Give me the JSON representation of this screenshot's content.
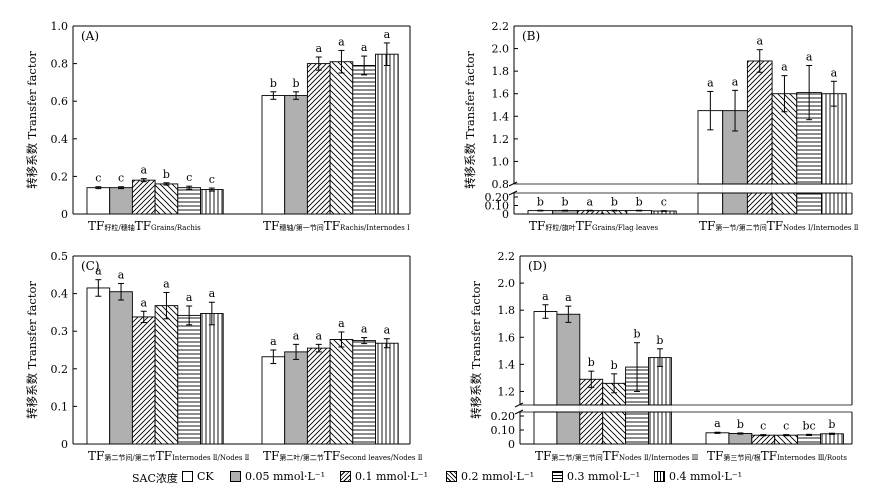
{
  "colors": {
    "CK": "#ffffff",
    "c005": "#b0b0b0"
  },
  "legend": {
    "title": "SAC浓度",
    "items": [
      "CK",
      "0.05 mmol·L⁻¹",
      "0.1 mmol·L⁻¹",
      "0.2 mmol·L⁻¹",
      "0.3 mmol·L⁻¹",
      "0.4 mmol·L⁻¹"
    ],
    "patterns": [
      "none",
      "solid-grey",
      "diag-right",
      "diag-left",
      "horizontal",
      "vertical"
    ]
  },
  "chart_data": [
    {
      "type": "bar",
      "panel": "(A)",
      "ylabel": "转移系数 Transfer factor",
      "ylim": [
        0,
        1.0
      ],
      "yticks": [
        "0",
        "0.2",
        "0.4",
        "0.6",
        "0.8",
        "1.0"
      ],
      "categories": [
        "TF 籽粒/穗轴 TF Grains/Rachis",
        "TF 穗轴/第一节间 TF Rachis/Internodes Ⅰ"
      ],
      "category_labels": [
        {
          "main": "TF",
          "sub": "籽粒/穗轴",
          "main2": "TF",
          "sub2": "Grains/Rachis"
        },
        {
          "main": "TF",
          "sub": "穗轴/第一节间",
          "main2": "TF",
          "sub2": "Rachis/Internodes Ⅰ"
        }
      ],
      "series_values": [
        [
          0.14,
          0.14,
          0.18,
          0.16,
          0.14,
          0.13
        ],
        [
          0.63,
          0.63,
          0.8,
          0.81,
          0.79,
          0.85
        ]
      ],
      "errors": [
        [
          0.005,
          0.005,
          0.008,
          0.006,
          0.008,
          0.008
        ],
        [
          0.02,
          0.02,
          0.035,
          0.06,
          0.05,
          0.06
        ]
      ],
      "letters": [
        [
          "c",
          "c",
          "a",
          "b",
          "c",
          "c"
        ],
        [
          "b",
          "b",
          "a",
          "a",
          "a",
          "a"
        ]
      ]
    },
    {
      "type": "bar",
      "panel": "(B)",
      "ylabel": "转移系数 Transfer factor",
      "axis_break": true,
      "ylim_lower": [
        0,
        0.2
      ],
      "ylim_upper": [
        0.8,
        2.2
      ],
      "yticks_lower": [
        "0",
        "0.10",
        "0.20"
      ],
      "yticks_upper": [
        "0.8",
        "1.0",
        "1.2",
        "1.4",
        "1.6",
        "1.8",
        "2.0",
        "2.2"
      ],
      "categories": [
        "TF 籽粒/旗叶 TF Grains/Flag leaves",
        "TF 第一节/第二节间 TF Nodes Ⅰ/Internodes Ⅱ"
      ],
      "category_labels": [
        {
          "main": "TF",
          "sub": "籽粒/旗叶",
          "main2": "TF",
          "sub2": "Grains/Flag leaves"
        },
        {
          "main": "TF",
          "sub": "第一节/第二节间",
          "main2": "TF",
          "sub2": "Nodes Ⅰ/Internodes Ⅱ"
        }
      ],
      "series_values": [
        [
          0.04,
          0.04,
          0.04,
          0.04,
          0.04,
          0.035
        ],
        [
          1.45,
          1.45,
          1.89,
          1.6,
          1.61,
          1.6
        ]
      ],
      "errors": [
        [
          0.004,
          0.004,
          0.004,
          0.004,
          0.004,
          0.004
        ],
        [
          0.17,
          0.18,
          0.1,
          0.16,
          0.24,
          0.11
        ]
      ],
      "letters": [
        [
          "b",
          "b",
          "a",
          "b",
          "b",
          "c"
        ],
        [
          "a",
          "a",
          "a",
          "a",
          "a",
          "a"
        ]
      ]
    },
    {
      "type": "bar",
      "panel": "(C)",
      "ylabel": "转移系数 Transfer factor",
      "ylim": [
        0,
        0.5
      ],
      "yticks": [
        "0",
        "0.1",
        "0.2",
        "0.3",
        "0.4",
        "0.5"
      ],
      "categories": [
        "TF 第二节间/第二节 TF Internodes Ⅱ/Nodes Ⅱ",
        "TF 第二叶/第二节 TF Second leaves/Nodes Ⅱ"
      ],
      "category_labels": [
        {
          "main": "TF",
          "sub": "第二节间/第二节",
          "main2": "TF",
          "sub2": "Internodes Ⅱ/Nodes Ⅱ"
        },
        {
          "main": "TF",
          "sub": "第二叶/第二节",
          "main2": "TF",
          "sub2": "Second leaves/Nodes Ⅱ"
        }
      ],
      "series_values": [
        [
          0.415,
          0.405,
          0.338,
          0.368,
          0.342,
          0.347
        ],
        [
          0.232,
          0.245,
          0.255,
          0.278,
          0.275,
          0.268
        ]
      ],
      "errors": [
        [
          0.022,
          0.022,
          0.015,
          0.035,
          0.025,
          0.03
        ],
        [
          0.018,
          0.02,
          0.01,
          0.02,
          0.008,
          0.012
        ]
      ],
      "letters": [
        [
          "a",
          "a",
          "a",
          "a",
          "a",
          "a"
        ],
        [
          "a",
          "a",
          "a",
          "a",
          "a",
          "a"
        ]
      ]
    },
    {
      "type": "bar",
      "panel": "(D)",
      "ylabel": "转移系数 Transfer factor",
      "axis_break": true,
      "ylim_lower": [
        0,
        0.2
      ],
      "ylim_upper": [
        1.1,
        2.2
      ],
      "yticks_lower": [
        "0",
        "0.10",
        "0.20"
      ],
      "yticks_upper": [
        "1.2",
        "1.4",
        "1.6",
        "1.8",
        "2.0",
        "2.2"
      ],
      "categories": [
        "TF 第二节/第三节间 TF Nodes Ⅱ/Internodes Ⅲ",
        "TF 第三节间/根 TF Internodes Ⅲ/Roots"
      ],
      "category_labels": [
        {
          "main": "TF",
          "sub": "第二节/第三节间",
          "main2": "TF",
          "sub2": "Nodes Ⅱ/Internodes Ⅲ"
        },
        {
          "main": "TF",
          "sub": "第三节间/根",
          "main2": "TF",
          "sub2": "Internodes Ⅲ/Roots"
        }
      ],
      "series_values": [
        [
          1.79,
          1.77,
          1.29,
          1.26,
          1.38,
          1.45
        ],
        [
          0.08,
          0.075,
          0.063,
          0.063,
          0.065,
          0.073
        ]
      ],
      "errors": [
        [
          0.05,
          0.06,
          0.06,
          0.07,
          0.18,
          0.065
        ],
        [
          0.004,
          0.004,
          0.004,
          0.004,
          0.004,
          0.004
        ]
      ],
      "letters": [
        [
          "a",
          "a",
          "b",
          "b",
          "b",
          "b"
        ],
        [
          "a",
          "b",
          "c",
          "c",
          "bc",
          "b"
        ]
      ]
    }
  ]
}
